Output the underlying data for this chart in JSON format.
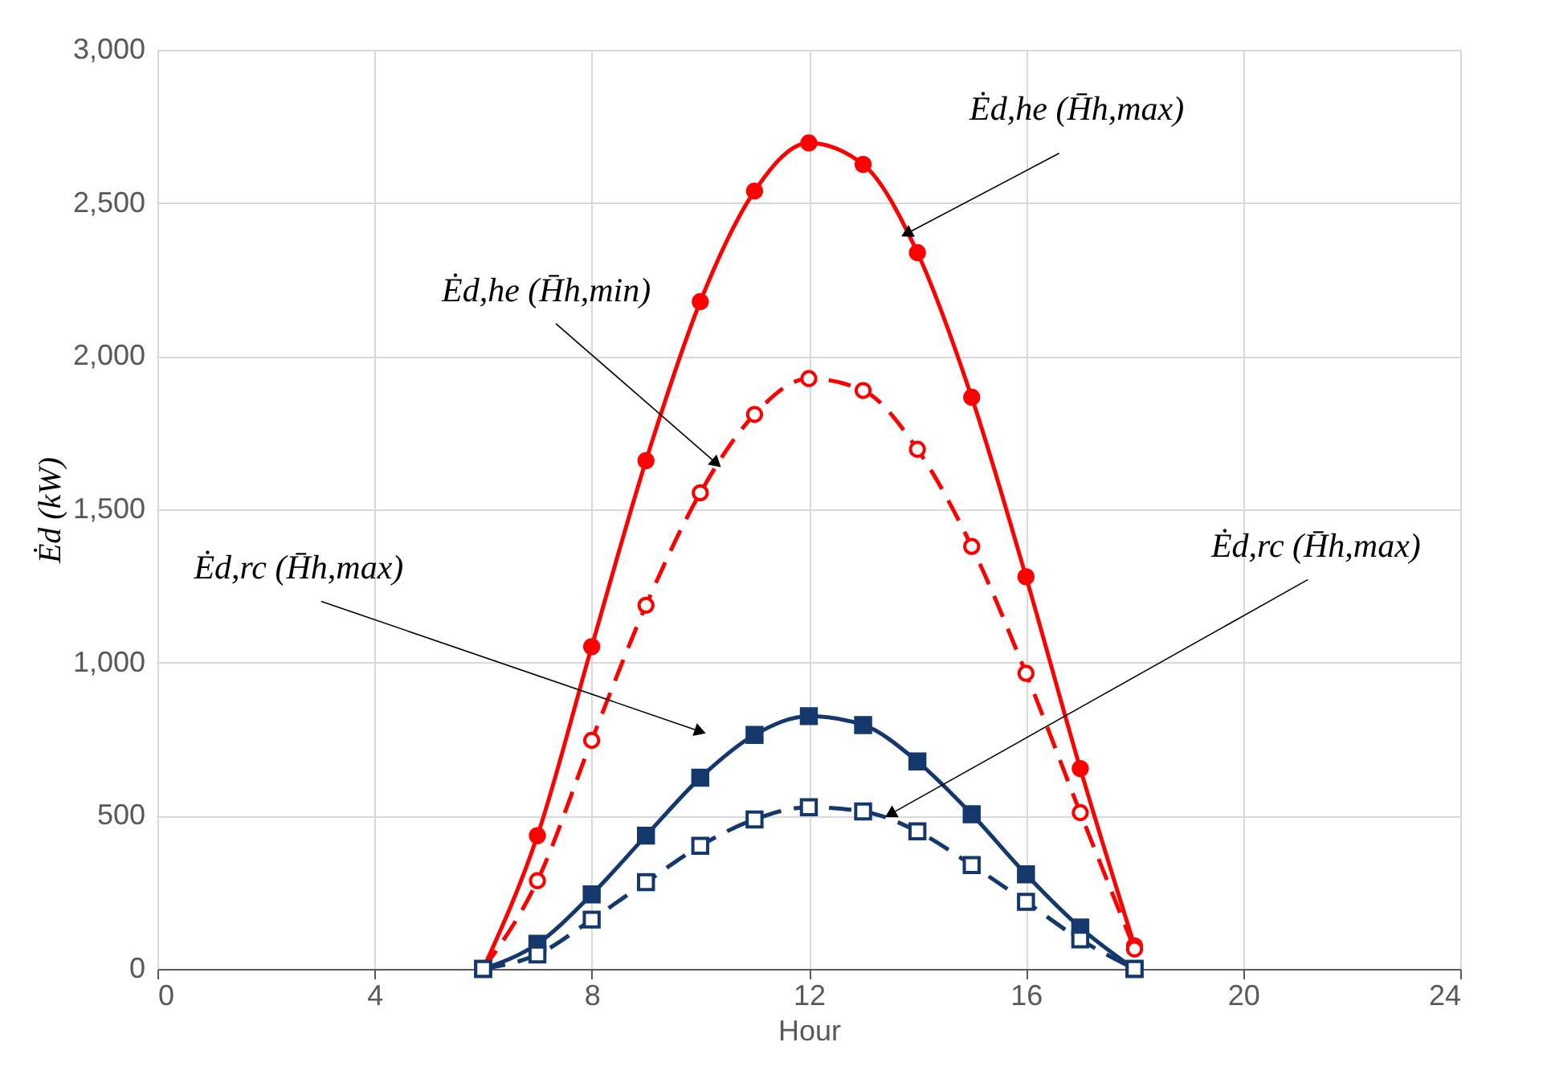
{
  "chart_data": {
    "type": "line",
    "xlabel": "Hour",
    "ylabel": "Ėd (kW)",
    "x": [
      6,
      7,
      8,
      9,
      10,
      11,
      12,
      13,
      14,
      15,
      16,
      17,
      18
    ],
    "series": [
      {
        "color": "#ff0000",
        "line_style": "solid",
        "marker": "circle",
        "values": [
          0,
          435,
          1052,
          1659,
          2178,
          2539,
          2696,
          2626,
          2338,
          1866,
          1280,
          654,
          75
        ]
      },
      {
        "color": "#ff0000",
        "line_style": "dashed",
        "marker": "circle",
        "values": [
          0,
          288,
          746,
          1187,
          1554,
          1810,
          1927,
          1888,
          1696,
          1379,
          965,
          510,
          65
        ]
      },
      {
        "color": "#14386b",
        "line_style": "solid",
        "marker": "square",
        "values": [
          0,
          82,
          243,
          435,
          624,
          764,
          825,
          796,
          677,
          505,
          309,
          135,
          0
        ]
      },
      {
        "color": "#14386b",
        "line_style": "dashed",
        "marker": "square",
        "values": [
          0,
          47,
          161,
          283,
          402,
          488,
          528,
          514,
          449,
          339,
          219,
          96,
          0
        ]
      }
    ],
    "annotations": [
      {
        "text": "Ėd,he (H̄h,max)",
        "x": 13.8,
        "y": 2400
      },
      {
        "text": "Ėd,he (H̄h,min)",
        "x": 10.3,
        "y": 1650
      },
      {
        "text": "Ėd,rc (H̄h,max)",
        "x": 10.0,
        "y": 775
      },
      {
        "text": "Ėd,rc (H̄h,max)",
        "x": 13.5,
        "y": 505
      }
    ],
    "xlim": [
      0,
      24
    ],
    "xticks": [
      0,
      4,
      8,
      12,
      16,
      20,
      24
    ],
    "ylim": [
      0,
      3000
    ],
    "yticks": [
      0,
      500,
      {
        "value": 1000,
        "label": "1,000"
      },
      {
        "value": 1500,
        "label": "1,500"
      },
      {
        "value": 2000,
        "label": "2,000"
      },
      {
        "value": 2500,
        "label": "2,500"
      },
      {
        "value": 3000,
        "label": "3,000"
      }
    ],
    "grid": true
  }
}
